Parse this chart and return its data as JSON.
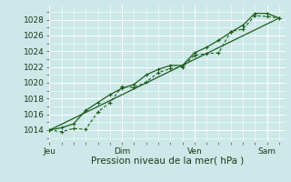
{
  "bg_color": "#cce8e8",
  "grid_color": "#ffffff",
  "line_color": "#1a5e1a",
  "ylabel_ticks": [
    1014,
    1016,
    1018,
    1020,
    1022,
    1024,
    1026,
    1028
  ],
  "ylim": [
    1012.5,
    1029.8
  ],
  "xlabel": "Pression niveau de la mer( hPa )",
  "day_labels": [
    "Jeu",
    "Dim",
    "Ven",
    "Sam"
  ],
  "day_positions": [
    0.0,
    3.0,
    6.0,
    9.0
  ],
  "xlim": [
    0.0,
    9.75
  ],
  "series1_x": [
    0.0,
    0.5,
    1.0,
    1.5,
    2.0,
    2.5,
    3.0,
    3.5,
    4.0,
    4.5,
    5.0,
    5.5,
    6.0,
    6.5,
    7.0,
    7.5,
    8.0,
    8.5,
    9.0,
    9.5
  ],
  "series1_y": [
    1014.0,
    1013.8,
    1014.2,
    1014.1,
    1016.3,
    1017.5,
    1019.5,
    1019.4,
    1020.1,
    1021.3,
    1021.8,
    1022.0,
    1023.5,
    1023.7,
    1023.8,
    1026.5,
    1026.8,
    1028.5,
    1028.4,
    1028.2
  ],
  "series2_x": [
    0.0,
    0.5,
    1.0,
    1.5,
    2.0,
    2.5,
    3.0,
    3.5,
    4.0,
    4.5,
    5.0,
    5.5,
    6.0,
    6.5,
    7.0,
    7.5,
    8.0,
    8.5,
    9.0,
    9.5
  ],
  "series2_y": [
    1014.0,
    1014.3,
    1014.8,
    1016.5,
    1017.5,
    1018.5,
    1019.3,
    1019.8,
    1021.0,
    1021.7,
    1022.2,
    1022.2,
    1023.8,
    1024.5,
    1025.4,
    1026.4,
    1027.3,
    1028.8,
    1028.8,
    1028.2
  ],
  "series3_x": [
    0.0,
    9.5
  ],
  "series3_y": [
    1014.0,
    1028.2
  ],
  "tick_fontsize": 6.5,
  "label_fontsize": 7.5,
  "vline_positions": [
    0.0,
    3.0,
    6.0,
    9.0
  ]
}
